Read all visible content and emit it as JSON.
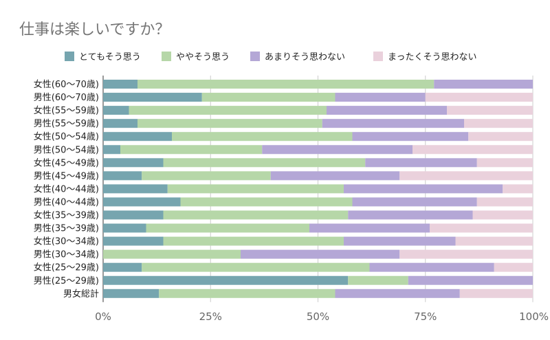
{
  "chart_data": {
    "type": "bar",
    "orientation": "horizontal",
    "stacked": "percent",
    "title": "仕事は楽しいですか？",
    "legend_position": "top",
    "categories": [
      "女性(60～70歳)",
      "男性(60～70歳)",
      "女性(55～59歳)",
      "男性(55～59歳)",
      "女性(50～54歳)",
      "男性(50～54歳)",
      "女性(45～49歳)",
      "男性(45～49歳)",
      "女性(40～44歳)",
      "男性(40～44歳)",
      "女性(35～39歳)",
      "男性(35～39歳)",
      "女性(30～34歳)",
      "男性(30～34歳)",
      "女性(25～29歳)",
      "男性(25～29歳)",
      "男女総計"
    ],
    "series": [
      {
        "name": "とてもそう思う",
        "color": "#76a5af",
        "values": [
          8,
          23,
          6,
          8,
          16,
          4,
          14,
          9,
          15,
          18,
          14,
          10,
          14,
          0,
          9,
          57,
          13
        ]
      },
      {
        "name": "ややそう思う",
        "color": "#b6d7a8",
        "values": [
          69,
          31,
          46,
          43,
          42,
          33,
          47,
          30,
          41,
          40,
          43,
          38,
          42,
          32,
          53,
          14,
          41
        ]
      },
      {
        "name": "あまりそう思わない",
        "color": "#b4a7d6",
        "values": [
          23,
          21,
          28,
          33,
          27,
          35,
          26,
          30,
          37,
          29,
          29,
          28,
          26,
          37,
          29,
          29,
          29
        ]
      },
      {
        "name": "まったくそう思わない",
        "color": "#ead1dc",
        "values": [
          0,
          25,
          20,
          16,
          15,
          28,
          13,
          31,
          7,
          13,
          14,
          24,
          18,
          31,
          9,
          0,
          17
        ]
      }
    ],
    "x_ticks": [
      "0%",
      "25%",
      "50%",
      "75%",
      "100%"
    ],
    "xlim": [
      0,
      100
    ],
    "grid": true
  }
}
